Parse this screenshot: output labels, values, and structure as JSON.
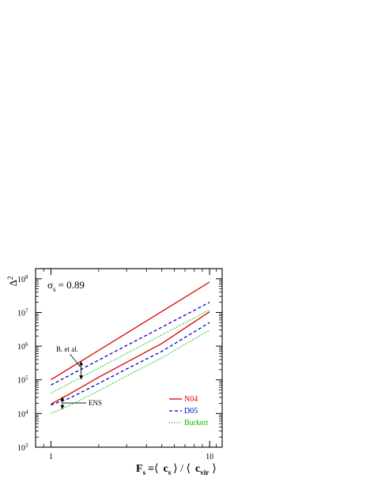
{
  "chart_data": {
    "type": "line",
    "title": "",
    "xscale": "log",
    "yscale": "log",
    "xlim": [
      0.8,
      12
    ],
    "ylim": [
      1000,
      200000000
    ],
    "grid": false,
    "xticks": [
      {
        "value": 1,
        "label": "1"
      },
      {
        "value": 10,
        "label": "10"
      }
    ],
    "yticks": [
      {
        "value": 1000,
        "base": "10",
        "exp": "3"
      },
      {
        "value": 10000,
        "base": "10",
        "exp": "4"
      },
      {
        "value": 100000,
        "base": "10",
        "exp": "5"
      },
      {
        "value": 1000000,
        "base": "10",
        "exp": "6"
      },
      {
        "value": 10000000,
        "base": "10",
        "exp": "7"
      },
      {
        "value": 100000000,
        "base": "10",
        "exp": "8"
      }
    ],
    "xlabel": {
      "F": "F",
      "F_sub": "s",
      "equiv": "≡⟨",
      "c1": "c",
      "c1_sub": "s",
      "mid": "⟩ / ⟨",
      "c2": "c",
      "c2_sub": "vir",
      "close": "⟩"
    },
    "ylabel": {
      "base": "Δ",
      "sup": "2"
    },
    "sigma_annotation": {
      "symbol": "σ",
      "sub": "s",
      "text": "= 0.89"
    },
    "legend": {
      "position": "bottom-right",
      "entries": [
        {
          "label": "N04",
          "color": "#dd0000",
          "dash": "solid"
        },
        {
          "label": "D05",
          "color": "#0000cc",
          "dash": "dashed"
        },
        {
          "label": "Burkert",
          "color": "#00bb00",
          "dash": "dotted"
        }
      ]
    },
    "annotations": [
      {
        "text": "B. et al.",
        "x": 1.55,
        "y_top": 320000,
        "y_bottom": 115000
      },
      {
        "text": "ENS",
        "x": 1.18,
        "y_top": 28000,
        "y_bottom": 15000
      }
    ],
    "series": [
      {
        "group": "upper",
        "color": "#dd0000",
        "dash": "solid",
        "x": [
          1,
          10
        ],
        "y": [
          100000,
          80000000
        ]
      },
      {
        "group": "upper",
        "color": "#0000cc",
        "dash": "dashed",
        "x": [
          1,
          10
        ],
        "y": [
          70000,
          20000000
        ]
      },
      {
        "group": "upper",
        "color": "#00bb00",
        "dash": "dotted",
        "x": [
          1,
          10
        ],
        "y": [
          40000,
          12000000
        ]
      },
      {
        "group": "lower",
        "color": "#dd0000",
        "dash": "solid",
        "x": [
          1,
          1.3,
          2,
          3,
          5,
          10
        ],
        "y": [
          19000,
          37000,
          120000,
          330000,
          1200000,
          10500000
        ]
      },
      {
        "group": "lower",
        "color": "#0000cc",
        "dash": "dashed",
        "x": [
          1,
          1.3,
          2,
          3,
          5,
          10
        ],
        "y": [
          18000,
          28000,
          78000,
          210000,
          700000,
          5000000
        ]
      },
      {
        "group": "lower",
        "color": "#00bb00",
        "dash": "dotted",
        "x": [
          1,
          1.3,
          2,
          3,
          5,
          10
        ],
        "y": [
          10000,
          17000,
          47000,
          130000,
          450000,
          3000000
        ]
      }
    ]
  }
}
